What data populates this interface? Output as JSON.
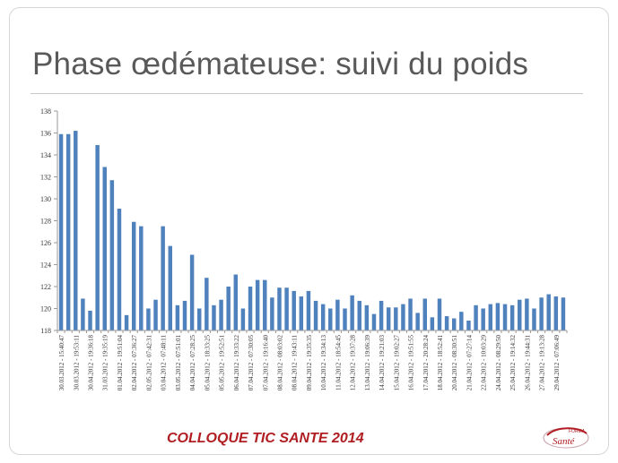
{
  "slide": {
    "title": "Phase œdémateuse: suivi du poids",
    "footer": "COLLOQUE TIC SANTE 2014",
    "logo": {
      "text_top": "FORMA",
      "text_bottom": "Santé"
    },
    "colors": {
      "bar": "#4f81bd",
      "footer": "#b01e23",
      "title": "#595959"
    }
  },
  "chart_data": {
    "type": "bar",
    "title": "",
    "xlabel": "",
    "ylabel": "",
    "ylim": [
      118,
      138
    ],
    "yticks": [
      118,
      120,
      122,
      124,
      126,
      128,
      130,
      132,
      134,
      136,
      138
    ],
    "grid": false,
    "legend": "none",
    "values": [
      135.9,
      135.9,
      136.2,
      120.9,
      119.8,
      134.9,
      132.9,
      131.7,
      129.1,
      119.4,
      127.9,
      127.5,
      120.0,
      120.8,
      127.5,
      125.7,
      120.3,
      120.7,
      124.9,
      120.0,
      122.8,
      120.3,
      120.8,
      122.0,
      123.1,
      120.0,
      122.0,
      122.6,
      122.6,
      121.0,
      121.9,
      121.9,
      121.6,
      121.1,
      121.6,
      120.7,
      120.4,
      120.0,
      120.8,
      120.0,
      121.2,
      120.7,
      120.3,
      119.5,
      120.7,
      120.1,
      120.1,
      120.4,
      120.9,
      119.6,
      120.9,
      119.2,
      120.9,
      119.3,
      119.1,
      119.7,
      118.9,
      120.3,
      120.0,
      120.4,
      120.5,
      120.4,
      120.3,
      120.8,
      120.9,
      120.0,
      121.0,
      121.3,
      121.1,
      121.0
    ],
    "tick_labels": [
      "30.03.2012 - 15:40:47",
      "30.03.2012 - 19:53:11",
      "30.04.2012 - 19:36:18",
      "31.03.2012 - 19:35:19",
      "01.04.2012 - 19:51:04",
      "02.04.2012 - 07:36:27",
      "02.05.2012 - 07:42:31",
      "03.04.2012 - 07:48:11",
      "03.05.2012 - 07:51:01",
      "04.04.2012 - 07:28:25",
      "05.04.2012 - 18:33:25",
      "05.05.2012 - 19:52:51",
      "06.04.2012 - 19:33:22",
      "07.04.2012 - 07:30:05",
      "07.04.2012 - 19:16:40",
      "08.04.2012 - 08:03:02",
      "08.04.2012 - 19:43:11",
      "09.04.2012 - 19:35:35",
      "10.04.2012 - 19:34:13",
      "11.04.2012 - 18:54:45",
      "12.04.2012 - 19:37:28",
      "13.04.2012 - 19:06:39",
      "14.04.2012 - 19:21:03",
      "15.04.2012 - 19:02:27",
      "16.04.2012 - 19:51:55",
      "17.04.2012 - 20:28:24",
      "18.04.2012 - 18:52:41",
      "20.04.2012 - 08:30:51",
      "21.04.2012 - 07:27:14",
      "22.04.2012 - 10:03:29",
      "24.04.2012 - 08:29:50",
      "25.04.2012 - 19:14:32",
      "26.04.2012 - 19:44:31",
      "27.04.2012 - 19:13:28",
      "29.04.2012 - 07:06:49"
    ]
  }
}
